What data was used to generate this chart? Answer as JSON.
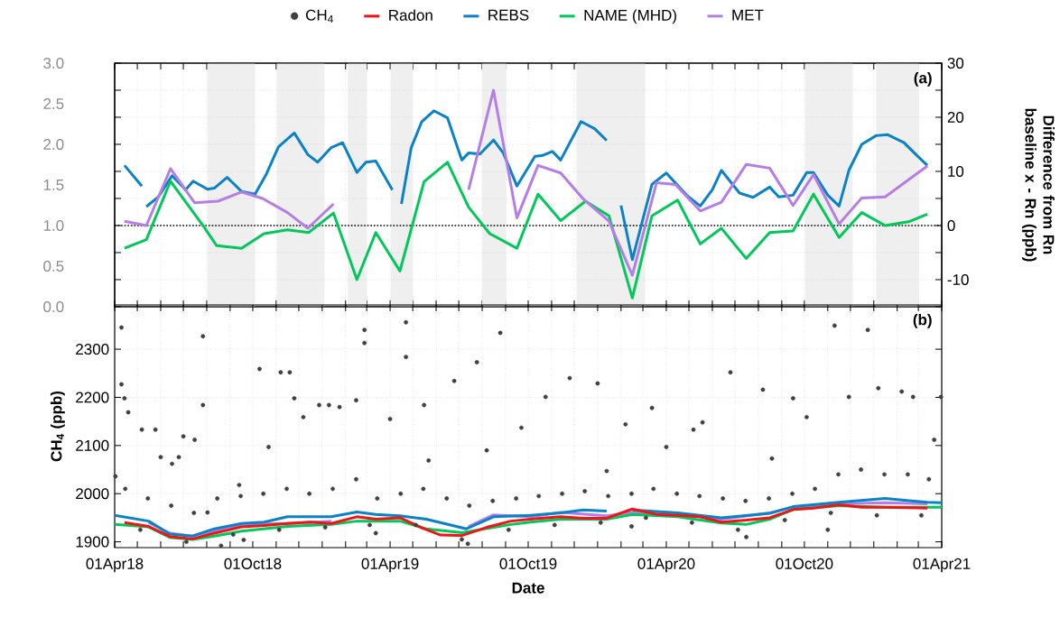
{
  "chart_data": [
    {
      "type": "line",
      "y2label": "Difference from Rn baseline x - Rn (ppb)",
      "annotations": [
        "(a)"
      ],
      "grid": true,
      "tick_labels": "y",
      "xlim": [
        "2018-04-01",
        "2021-04-01"
      ],
      "xticks": [
        {
          "value": "2018-04-01",
          "label": null
        },
        {
          "value": "2018-05-01",
          "label": null
        },
        {
          "value": "2018-06-01",
          "label": null
        },
        {
          "value": "2018-07-01",
          "label": null
        },
        {
          "value": "2018-08-01",
          "label": null
        },
        {
          "value": "2018-09-01",
          "label": null
        },
        {
          "value": "2018-10-01",
          "label": null
        },
        {
          "value": "2018-11-01",
          "label": null
        },
        {
          "value": "2018-12-01",
          "label": null
        },
        {
          "value": "2019-01-01",
          "label": null
        },
        {
          "value": "2019-02-01",
          "label": null
        },
        {
          "value": "2019-03-01",
          "label": null
        },
        {
          "value": "2019-04-01",
          "label": null
        },
        {
          "value": "2019-05-01",
          "label": null
        },
        {
          "value": "2019-06-01",
          "label": null
        },
        {
          "value": "2019-07-01",
          "label": null
        },
        {
          "value": "2019-08-01",
          "label": null
        },
        {
          "value": "2019-09-01",
          "label": null
        },
        {
          "value": "2019-10-01",
          "label": null
        },
        {
          "value": "2019-11-01",
          "label": null
        },
        {
          "value": "2019-12-01",
          "label": null
        },
        {
          "value": "2020-01-01",
          "label": null
        },
        {
          "value": "2020-02-01",
          "label": null
        },
        {
          "value": "2020-03-01",
          "label": null
        },
        {
          "value": "2020-04-01",
          "label": null
        },
        {
          "value": "2020-05-01",
          "label": null
        },
        {
          "value": "2020-06-01",
          "label": null
        },
        {
          "value": "2020-07-01",
          "label": null
        },
        {
          "value": "2020-08-01",
          "label": null
        },
        {
          "value": "2020-09-01",
          "label": null
        },
        {
          "value": "2020-10-01",
          "label": null
        },
        {
          "value": "2020-11-01",
          "label": null
        },
        {
          "value": "2020-12-01",
          "label": null
        },
        {
          "value": "2021-01-01",
          "label": null
        },
        {
          "value": "2021-02-01",
          "label": null
        },
        {
          "value": "2021-03-01",
          "label": null
        },
        {
          "value": "2021-04-01",
          "label": null
        }
      ],
      "ylim": [
        0,
        3
      ],
      "yticks": [
        {
          "value": 0,
          "label": "0.0"
        },
        {
          "value": 0.5,
          "label": "0.5"
        },
        {
          "value": 1,
          "label": "1.0"
        },
        {
          "value": 1.5,
          "label": "1.5"
        },
        {
          "value": 2,
          "label": "2.0"
        },
        {
          "value": 2.5,
          "label": "2.5"
        },
        {
          "value": 3,
          "label": "3.0"
        }
      ],
      "y2lim": [
        -15,
        30
      ],
      "y2ticks": [
        {
          "value": -15,
          "label": null
        },
        -10,
        {
          "value": -5,
          "label": null
        },
        0,
        {
          "value": 5,
          "label": null
        },
        10,
        {
          "value": 15,
          "label": null
        },
        20,
        {
          "value": 25,
          "label": null
        },
        30
      ],
      "ref_lines": [
        {
          "axis": "y2",
          "value": 0,
          "color": "#000000",
          "line_style": "dotted"
        }
      ],
      "bands": [
        {
          "axis": "x",
          "from": "2018-08-02",
          "to": "2018-10-04",
          "color": "#efefef"
        },
        {
          "axis": "x",
          "from": "2018-11-02",
          "to": "2019-01-04",
          "color": "#efefef"
        },
        {
          "axis": "x",
          "from": "2019-02-04",
          "to": "2019-03-01",
          "color": "#efefef"
        },
        {
          "axis": "x",
          "from": "2019-04-02",
          "to": "2019-05-01",
          "color": "#efefef"
        },
        {
          "axis": "x",
          "from": "2019-08-01",
          "to": "2019-09-02",
          "color": "#efefef"
        },
        {
          "axis": "x",
          "from": "2019-12-04",
          "to": "2020-03-04",
          "color": "#efefef"
        },
        {
          "axis": "x",
          "from": "2020-10-02",
          "to": "2020-12-04",
          "color": "#efefef"
        },
        {
          "axis": "x",
          "from": "2021-01-04",
          "to": "2021-03-02",
          "color": "#efefef"
        }
      ],
      "series": [
        {
          "color": "#0a82c8",
          "axis": "y2",
          "x": [
            "2018-04-14",
            "2018-05-07",
            "2018-05-10",
            "2018-05-13",
            "2018-05-29",
            "2018-06-16",
            "2018-07-04",
            "2018-07-14",
            "2018-08-02",
            "2018-08-11",
            "2018-08-28",
            "2018-09-16",
            "2018-10-04",
            "2018-10-19",
            "2018-11-04",
            "2018-11-25",
            "2018-12-13",
            "2018-12-26",
            "2019-01-13",
            "2019-01-28",
            "2019-02-16",
            "2019-02-28",
            "2019-03-13",
            "2019-04-04",
            "2019-04-08",
            "2019-04-16",
            "2019-04-29",
            "2019-05-13",
            "2019-05-29",
            "2019-06-16",
            "2019-07-05",
            "2019-07-14",
            "2019-07-29",
            "2019-08-16",
            "2019-08-29",
            "2019-09-16",
            "2019-10-10",
            "2019-10-19",
            "2019-11-02",
            "2019-11-13",
            "2019-12-10",
            "2019-12-28",
            "2020-01-13",
            "2020-01-25",
            "2020-02-01",
            "2020-02-16",
            "2020-03-13",
            "2020-04-01",
            "2020-04-28",
            "2020-05-16",
            "2020-06-01",
            "2020-06-13",
            "2020-07-07",
            "2020-07-25",
            "2020-08-16",
            "2020-08-28",
            "2020-09-16",
            "2020-10-04",
            "2020-10-13",
            "2020-11-01",
            "2020-11-16",
            "2020-11-29",
            "2020-12-16",
            "2021-01-04",
            "2021-01-19",
            "2021-02-10",
            "2021-02-28",
            "2021-03-13"
          ],
          "values": [
            11.1,
            7.3,
            null,
            3.5,
            5.3,
            9.2,
            6.6,
            8.2,
            6.7,
            6.9,
            8.9,
            6.3,
            5.8,
            9.5,
            14.5,
            17.1,
            13.1,
            11.7,
            14.4,
            15.3,
            9.8,
            11.7,
            11.9,
            6.6,
            null,
            4.0,
            14.4,
            19.2,
            21.2,
            19.9,
            12.1,
            13.4,
            13.2,
            15.8,
            13.4,
            7.3,
            12.8,
            12.9,
            13.7,
            12.1,
            19.2,
            17.9,
            15.7,
            null,
            3.7,
            -6.3,
            7.6,
            9.7,
            5.6,
            3.6,
            6.6,
            10.2,
            6.0,
            5.2,
            7.1,
            5.3,
            5.6,
            9.8,
            9.8,
            5.6,
            3.6,
            10.2,
            15.0,
            16.6,
            16.8,
            15.3,
            12.8,
            11.1
          ]
        },
        {
          "color": "#00c85a",
          "axis": "y2",
          "x": [
            "2018-04-14",
            "2018-05-13",
            "2018-06-14",
            "2018-07-28",
            "2018-08-14",
            "2018-09-16",
            "2018-10-16",
            "2018-11-16",
            "2018-12-14",
            "2019-01-16",
            "2019-02-16",
            "2019-03-13",
            "2019-04-14",
            "2019-05-16",
            "2019-06-16",
            "2019-07-14",
            "2019-08-11",
            "2019-09-16",
            "2019-10-14",
            "2019-11-13",
            "2019-12-16",
            "2020-01-16",
            "2020-02-16",
            "2020-03-13",
            "2020-04-16",
            "2020-05-16",
            "2020-06-13",
            "2020-07-16",
            "2020-08-16",
            "2020-09-16",
            "2020-10-13",
            "2020-11-16",
            "2020-12-16",
            "2021-01-16",
            "2021-02-16",
            "2021-03-13"
          ],
          "values": [
            -4.2,
            -2.6,
            8.2,
            -0.2,
            -3.7,
            -4.2,
            -1.5,
            -0.8,
            -1.3,
            2.3,
            -10.0,
            -1.3,
            -8.4,
            8.1,
            11.7,
            3.4,
            -1.5,
            -4.2,
            5.8,
            0.9,
            4.5,
            1.8,
            -13.4,
            1.8,
            4.7,
            -3.4,
            -0.5,
            -6.1,
            -1.3,
            -1.0,
            5.8,
            -2.2,
            2.4,
            0.0,
            0.7,
            2.1
          ]
        },
        {
          "color": "#b47ee6",
          "axis": "y2",
          "x": [
            "2018-04-14",
            "2018-05-13",
            "2018-06-14",
            "2018-07-16",
            "2018-08-16",
            "2018-09-16",
            "2018-10-14",
            "2018-11-16",
            "2018-12-13",
            "2019-01-16",
            "2019-04-01",
            "2019-07-14",
            "2019-08-16",
            "2019-09-16",
            "2019-10-14",
            "2019-11-13",
            "2019-12-13",
            "2020-01-16",
            "2020-02-16",
            "2020-03-19",
            "2020-04-13",
            "2020-05-16",
            "2020-06-13",
            "2020-07-16",
            "2020-08-16",
            "2020-09-16",
            "2020-10-13",
            "2020-11-16",
            "2020-12-16",
            "2021-01-16",
            "2021-03-13"
          ],
          "values": [
            0.8,
            0.0,
            10.5,
            4.2,
            4.5,
            6.2,
            5.0,
            2.4,
            -0.5,
            4.0,
            null,
            6.6,
            25.0,
            1.4,
            11.1,
            9.7,
            4.9,
            0.8,
            -9.2,
            7.9,
            7.6,
            2.7,
            4.3,
            11.3,
            10.6,
            3.7,
            9.4,
            0.3,
            5.1,
            5.3,
            11.0
          ]
        }
      ]
    },
    {
      "type": "line",
      "xlabel": "Date",
      "ylabel": "CH$_{4}$ (ppb)",
      "annotations": [
        "(b)"
      ],
      "grid": true,
      "legend": "top",
      "xlim": [
        "2018-04-01",
        "2021-04-01"
      ],
      "xticks": [
        {
          "value": "2018-04-01",
          "label": "01Apr18"
        },
        {
          "value": "2018-05-01",
          "label": null
        },
        {
          "value": "2018-06-01",
          "label": null
        },
        {
          "value": "2018-07-01",
          "label": null
        },
        {
          "value": "2018-08-01",
          "label": null
        },
        {
          "value": "2018-09-01",
          "label": null
        },
        {
          "value": "2018-10-01",
          "label": "01Oct18"
        },
        {
          "value": "2018-11-01",
          "label": null
        },
        {
          "value": "2018-12-01",
          "label": null
        },
        {
          "value": "2019-01-01",
          "label": null
        },
        {
          "value": "2019-02-01",
          "label": null
        },
        {
          "value": "2019-03-01",
          "label": null
        },
        {
          "value": "2019-04-01",
          "label": "01Apr19"
        },
        {
          "value": "2019-05-01",
          "label": null
        },
        {
          "value": "2019-06-01",
          "label": null
        },
        {
          "value": "2019-07-01",
          "label": null
        },
        {
          "value": "2019-08-01",
          "label": null
        },
        {
          "value": "2019-09-01",
          "label": null
        },
        {
          "value": "2019-10-01",
          "label": "01Oct19"
        },
        {
          "value": "2019-11-01",
          "label": null
        },
        {
          "value": "2019-12-01",
          "label": null
        },
        {
          "value": "2020-01-01",
          "label": null
        },
        {
          "value": "2020-02-01",
          "label": null
        },
        {
          "value": "2020-03-01",
          "label": null
        },
        {
          "value": "2020-04-01",
          "label": "01Apr20"
        },
        {
          "value": "2020-05-01",
          "label": null
        },
        {
          "value": "2020-06-01",
          "label": null
        },
        {
          "value": "2020-07-01",
          "label": null
        },
        {
          "value": "2020-08-01",
          "label": null
        },
        {
          "value": "2020-09-01",
          "label": null
        },
        {
          "value": "2020-10-01",
          "label": "01Oct20"
        },
        {
          "value": "2020-11-01",
          "label": null
        },
        {
          "value": "2020-12-01",
          "label": null
        },
        {
          "value": "2021-01-01",
          "label": null
        },
        {
          "value": "2021-02-01",
          "label": null
        },
        {
          "value": "2021-03-01",
          "label": null
        },
        {
          "value": "2021-04-01",
          "label": "01Apr21"
        }
      ],
      "ylim": [
        1888,
        2392
      ],
      "yticks": [
        1900,
        2000,
        2100,
        2200,
        2300
      ],
      "series": [
        {
          "name": "CH$_{4}$",
          "type": "scatter",
          "marker": "circle",
          "color": "#404040",
          "x": [
            "2018-04-10",
            "2018-04-10",
            "2018-04-02",
            "2018-04-14",
            "2018-04-19",
            "2018-05-07",
            "2018-05-25",
            "2018-06-01",
            "2018-06-16",
            "2018-06-25",
            "2018-07-01",
            "2018-07-16",
            "2018-07-27",
            "2018-07-27",
            "2018-08-02",
            "2018-08-20",
            "2018-09-13",
            "2018-09-19",
            "2018-10-10",
            "2018-10-22",
            "2018-11-07",
            "2018-11-19",
            "2018-11-25",
            "2018-12-07",
            "2018-12-28",
            "2019-01-10",
            "2019-01-24",
            "2019-02-15",
            "2019-02-26",
            "2019-02-26",
            "2019-03-13",
            "2019-04-01",
            "2019-04-22",
            "2019-04-22",
            "2019-05-16",
            "2019-05-22",
            "2019-06-25",
            "2019-07-13",
            "2019-07-25",
            "2019-08-07",
            "2019-08-25",
            "2019-09-22",
            "2019-10-24",
            "2019-11-25",
            "2020-01-01",
            "2020-01-13",
            "2020-02-07",
            "2020-02-15",
            "2020-03-13",
            "2020-04-01",
            "2020-05-07",
            "2020-05-19",
            "2020-06-25",
            "2020-07-16",
            "2020-08-07",
            "2020-08-19",
            "2020-09-16",
            "2020-10-04",
            "2020-11-01",
            "2020-11-10",
            "2020-11-29",
            "2020-12-24",
            "2021-01-07",
            "2021-02-07",
            "2021-02-22",
            "2021-03-22",
            "2021-03-31",
            "2018-04-15",
            "2018-05-15",
            "2018-06-15",
            "2018-07-15",
            "2018-08-15",
            "2018-09-15",
            "2018-10-15",
            "2018-11-15",
            "2018-12-15",
            "2019-01-15",
            "2019-02-15",
            "2019-03-15",
            "2019-04-15",
            "2019-05-15",
            "2019-06-15",
            "2019-07-15",
            "2019-08-15",
            "2019-09-15",
            "2019-10-15",
            "2019-11-15",
            "2019-12-15",
            "2020-01-15",
            "2020-02-15",
            "2020-03-15",
            "2020-04-15",
            "2020-05-15",
            "2020-06-15",
            "2020-07-15",
            "2020-08-15",
            "2020-09-15",
            "2020-10-15",
            "2020-11-15",
            "2020-12-15",
            "2021-01-15",
            "2021-02-15",
            "2021-03-15",
            "2018-05-05",
            "2018-07-05",
            "2018-09-05",
            "2018-11-05",
            "2019-01-05",
            "2019-03-05",
            "2019-05-05",
            "2019-07-05",
            "2019-09-05",
            "2019-11-05",
            "2020-01-05",
            "2020-03-05",
            "2020-05-05",
            "2020-07-05",
            "2020-09-05",
            "2020-11-05",
            "2021-01-05",
            "2021-03-05"
          ],
          "values": [
            2345,
            2227,
            2036,
            2198,
            2169,
            2133,
            2133,
            2076,
            2062,
            2076,
            2119,
            2112,
            2327,
            2184,
            1961,
            1892,
            2018,
            1904,
            2259,
            2097,
            2252,
            2252,
            2198,
            2159,
            2184,
            2184,
            2180,
            2194,
            2340,
            2313,
            1918,
            2155,
            2356,
            2284,
            2184,
            2069,
            2234,
            1896,
            2273,
            2090,
            2334,
            2137,
            2201,
            2240,
            2229,
            2047,
            2144,
            1932,
            2178,
            2097,
            2133,
            2148,
            2252,
            1910,
            2216,
            2073,
            2198,
            2159,
            1925,
            2349,
            2201,
            2340,
            2219,
            2212,
            2201,
            2112,
            2201,
            2010,
            1990,
            1975,
            1960,
            1990,
            1995,
            2000,
            2010,
            2000,
            2010,
            2030,
            1990,
            2000,
            2010,
            1990,
            1975,
            1985,
            1990,
            1995,
            2000,
            2005,
            1995,
            2000,
            2010,
            2000,
            1995,
            1990,
            1985,
            1990,
            2000,
            2010,
            2040,
            2050,
            2040,
            2040,
            2030,
            1925,
            1900,
            1915,
            1925,
            1930,
            1935,
            1935,
            1905,
            1925,
            1935,
            1940,
            1950,
            1940,
            1925,
            1945,
            1960,
            1955,
            1955
          ]
        },
        {
          "name": "Radon",
          "color": "#f01414",
          "x": [
            "2018-04-14",
            "2018-05-16",
            "2018-06-13",
            "2018-07-13",
            "2018-08-11",
            "2018-09-16",
            "2018-10-16",
            "2018-11-16",
            "2018-12-16",
            "2019-01-13",
            "2019-02-16",
            "2019-03-13",
            "2019-04-14",
            "2019-05-13",
            "2019-06-07",
            "2019-07-05",
            "2019-08-07",
            "2019-09-08",
            "2019-10-10",
            "2019-11-13",
            "2019-12-13",
            "2020-01-13",
            "2020-02-16",
            "2020-03-19",
            "2020-04-16",
            "2020-05-16",
            "2020-06-13",
            "2020-07-16",
            "2020-08-16",
            "2020-09-16",
            "2020-10-13",
            "2020-11-16",
            "2020-12-16",
            "2021-01-16",
            "2021-03-13"
          ],
          "values": [
            1940,
            1932,
            1911,
            1906,
            1918,
            1931,
            1934,
            1938,
            1941,
            1938,
            1952,
            1947,
            1950,
            1929,
            1914,
            1913,
            1930,
            1943,
            1948,
            1952,
            1949,
            1949,
            1968,
            1957,
            1955,
            1952,
            1941,
            1945,
            1950,
            1967,
            1970,
            1977,
            1972,
            1972,
            1970
          ]
        },
        {
          "name": "REBS",
          "color": "#0a82c8",
          "x": [
            "2018-04-01",
            "2018-05-16",
            "2018-06-13",
            "2018-07-13",
            "2018-08-11",
            "2018-09-16",
            "2018-10-16",
            "2018-11-16",
            "2018-12-16",
            "2019-01-13",
            "2019-02-16",
            "2019-03-13",
            "2019-04-14",
            "2019-05-19",
            "2019-07-11",
            "2019-08-16",
            "2019-10-04",
            "2019-11-13",
            "2019-12-13",
            "2020-01-13",
            "2020-01-25",
            "2020-02-16",
            "2020-04-16",
            "2020-06-13",
            "2020-08-16",
            "2020-09-16",
            "2020-11-16",
            "2021-01-16",
            "2021-03-13",
            "2021-04-01"
          ],
          "values": [
            1955,
            1943,
            1916,
            1912,
            1927,
            1938,
            1941,
            1952,
            1952,
            1952,
            1962,
            1957,
            1954,
            1947,
            1927,
            1952,
            1955,
            1960,
            1966,
            1964,
            null,
            1966,
            1960,
            1950,
            1959,
            1973,
            1982,
            1990,
            1982,
            1981
          ]
        },
        {
          "name": "NAME (MHD)",
          "color": "#00c85a",
          "x": [
            "2018-04-01",
            "2018-05-16",
            "2018-06-13",
            "2018-07-13",
            "2018-08-11",
            "2018-09-16",
            "2018-11-16",
            "2019-01-13",
            "2019-02-16",
            "2019-04-14",
            "2019-05-19",
            "2019-07-05",
            "2019-09-08",
            "2019-10-04",
            "2019-11-13",
            "2020-01-13",
            "2020-02-16",
            "2020-04-16",
            "2020-06-13",
            "2020-07-16",
            "2020-08-16",
            "2020-09-16",
            "2020-11-16",
            "2021-01-16",
            "2021-04-01"
          ],
          "values": [
            1936,
            1931,
            1909,
            1905,
            1912,
            1922,
            1932,
            1936,
            1943,
            1943,
            1927,
            1919,
            1936,
            1941,
            1947,
            1947,
            1957,
            1952,
            1939,
            1936,
            1947,
            1967,
            1975,
            1972,
            1972
          ]
        },
        {
          "name": "MET",
          "color": "#b47ee6",
          "x": [
            "2018-05-16",
            "2018-06-13",
            "2018-07-13",
            "2018-09-16",
            "2018-11-16",
            "2019-01-13",
            "2019-04-01",
            "2019-07-14",
            "2019-08-16",
            "2019-09-08",
            "2019-10-04",
            "2019-11-13",
            "2020-01-13",
            "2020-02-16",
            "2020-04-16",
            "2020-06-13",
            "2020-08-16",
            "2020-09-16",
            "2020-11-16",
            "2021-01-16",
            "2021-03-13"
          ],
          "values": [
            1940,
            1918,
            1912,
            1936,
            1938,
            1943,
            null,
            1932,
            1956,
            1954,
            1952,
            1961,
            1954,
            1961,
            1957,
            1947,
            1960,
            1972,
            1979,
            1981,
            1979
          ]
        }
      ]
    }
  ]
}
